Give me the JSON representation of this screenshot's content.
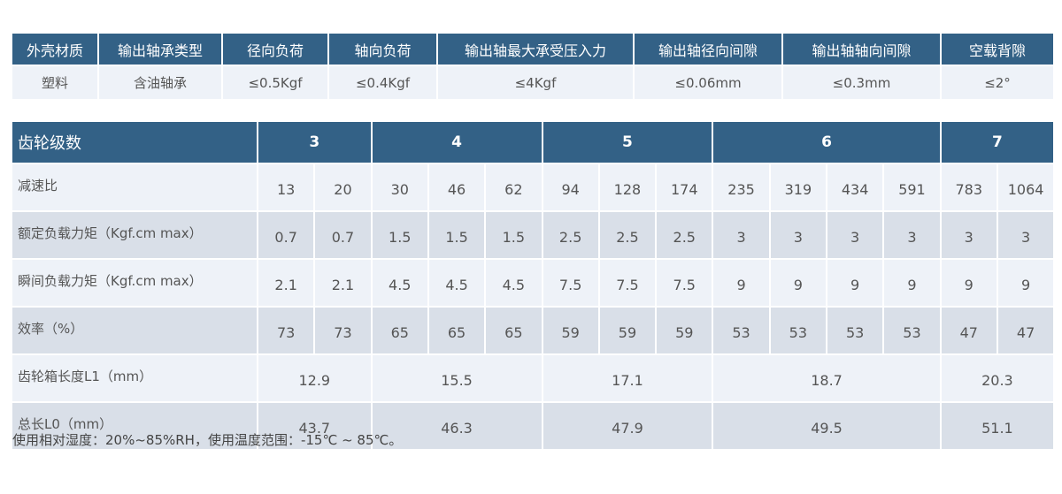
{
  "spec_table": {
    "headers": [
      "外壳材质",
      "输出轴承类型",
      "径向负荷",
      "轴向负荷",
      "输出轴最大承受压入力",
      "输出轴径向间隙",
      "输出轴轴向间隙",
      "空载背隙"
    ],
    "values": [
      "塑料",
      "含油轴承",
      "≤0.5Kgf",
      "≤0.4Kgf",
      "≤4Kgf",
      "≤0.06mm",
      "≤0.3mm",
      "≤2°"
    ]
  },
  "gear_table": {
    "header_label": "齿轮级数",
    "stages": [
      "3",
      "4",
      "5",
      "6",
      "7"
    ],
    "rows": [
      {
        "label": "减速比",
        "values": [
          "13",
          "20",
          "30",
          "46",
          "62",
          "94",
          "128",
          "174",
          "235",
          "319",
          "434",
          "591",
          "783",
          "1064"
        ]
      },
      {
        "label": "额定负载力矩（Kgf.cm max）",
        "values": [
          "0.7",
          "0.7",
          "1.5",
          "1.5",
          "1.5",
          "2.5",
          "2.5",
          "2.5",
          "3",
          "3",
          "3",
          "3",
          "3",
          "3"
        ]
      },
      {
        "label": "瞬间负载力矩（Kgf.cm max）",
        "values": [
          "2.1",
          "2.1",
          "4.5",
          "4.5",
          "4.5",
          "7.5",
          "7.5",
          "7.5",
          "9",
          "9",
          "9",
          "9",
          "9",
          "9"
        ]
      },
      {
        "label": "效率（%）",
        "values": [
          "73",
          "73",
          "65",
          "65",
          "65",
          "59",
          "59",
          "59",
          "53",
          "53",
          "53",
          "53",
          "47",
          "47"
        ]
      },
      {
        "label": "齿轮箱长度L1（mm）",
        "values": [
          "12.9",
          "15.5",
          "17.1",
          "18.7",
          "20.3"
        ]
      },
      {
        "label": "总长L0（mm）",
        "values": [
          "43.7",
          "46.3",
          "47.9",
          "49.5",
          "51.1"
        ]
      }
    ]
  },
  "note": "使用相对湿度：20%~85%RH，使用温度范围：-15℃ ~ 85℃。",
  "colors": {
    "header": "#336186",
    "row_light": "#eef2f8",
    "row_dark": "#d9dfe8"
  }
}
